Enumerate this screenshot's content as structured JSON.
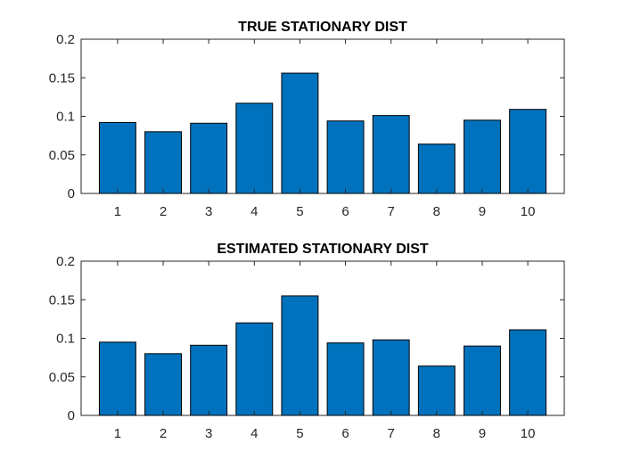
{
  "chart_data": [
    {
      "type": "bar",
      "title": "TRUE STATIONARY DIST",
      "categories": [
        "1",
        "2",
        "3",
        "4",
        "5",
        "6",
        "7",
        "8",
        "9",
        "10"
      ],
      "values": [
        0.092,
        0.08,
        0.091,
        0.117,
        0.156,
        0.094,
        0.101,
        0.064,
        0.095,
        0.109
      ],
      "ylim": [
        0,
        0.2
      ],
      "yticks": [
        "0",
        "0.05",
        "0.1",
        "0.15",
        "0.2"
      ],
      "ytick_values": [
        0,
        0.05,
        0.1,
        0.15,
        0.2
      ],
      "xlabel": "",
      "ylabel": "",
      "bar_color": "#0072BD",
      "grid": false
    },
    {
      "type": "bar",
      "title": "ESTIMATED STATIONARY DIST",
      "categories": [
        "1",
        "2",
        "3",
        "4",
        "5",
        "6",
        "7",
        "8",
        "9",
        "10"
      ],
      "values": [
        0.095,
        0.08,
        0.091,
        0.12,
        0.155,
        0.094,
        0.098,
        0.064,
        0.09,
        0.111
      ],
      "ylim": [
        0,
        0.2
      ],
      "yticks": [
        "0",
        "0.05",
        "0.1",
        "0.15",
        "0.2"
      ],
      "ytick_values": [
        0,
        0.05,
        0.1,
        0.15,
        0.2
      ],
      "xlabel": "",
      "ylabel": "",
      "bar_color": "#0072BD",
      "grid": false
    }
  ]
}
